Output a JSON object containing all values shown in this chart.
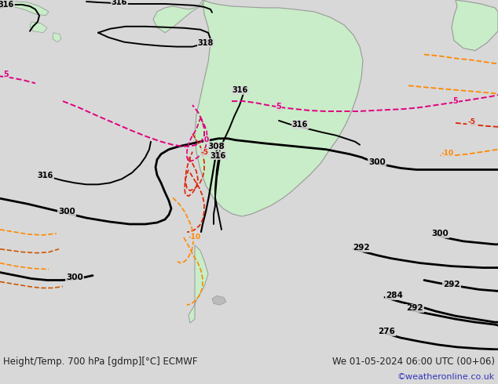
{
  "title_left": "Height/Temp. 700 hPa [gdmp][°C] ECMWF",
  "title_right": "We 01-05-2024 06:00 UTC (00+06)",
  "credit": "©weatheronline.co.uk",
  "bg_color": "#d8d8d8",
  "land_color": "#c8edc8",
  "land_edge": "#999999",
  "figsize": [
    6.34,
    4.9
  ],
  "dpi": 100,
  "text_color": "#222222",
  "credit_color": "#3333bb"
}
